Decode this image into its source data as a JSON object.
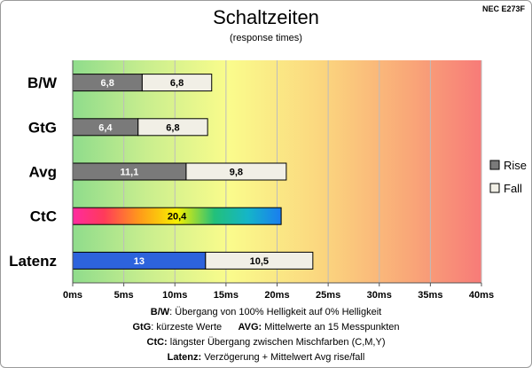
{
  "chart_data": {
    "type": "bar",
    "orientation": "horizontal",
    "stacked": true,
    "title": "Schaltzeiten",
    "subtitle": "(response times)",
    "model": "NEC E273F",
    "categories": [
      "B/W",
      "GtG",
      "Avg",
      "CtC",
      "Latenz"
    ],
    "series": [
      {
        "name": "Rise",
        "values": [
          6.8,
          6.4,
          11.1,
          20.4,
          13
        ],
        "color": "#7a7a7a"
      },
      {
        "name": "Fall",
        "values": [
          6.8,
          6.8,
          9.8,
          0,
          10.5
        ],
        "color": "#f1efe6"
      }
    ],
    "value_labels": {
      "rise": [
        "6,8",
        "6,4",
        "11,1",
        "20,4",
        "13"
      ],
      "fall": [
        "6,8",
        "6,8",
        "9,8",
        "",
        "10,5"
      ]
    },
    "special_fills": {
      "CtC": "rainbow-gradient",
      "Latenz": "blue"
    },
    "xlim": [
      0,
      40
    ],
    "xticks": [
      0,
      5,
      10,
      15,
      20,
      25,
      30,
      35,
      40
    ],
    "xtick_labels": [
      "0ms",
      "5ms",
      "10ms",
      "15ms",
      "20ms",
      "25ms",
      "30ms",
      "35ms",
      "40ms"
    ],
    "background": "gradient green-yellow-red",
    "grid": true,
    "legend_position": "right"
  },
  "notes": {
    "line1_key": "B/W",
    "line1_text": ":  Übergang von 100% Helligkeit auf 0% Helligkeit",
    "line2a_key": "GtG",
    "line2a_text": ": kürzeste  Werte",
    "line2b_key": "AVG:",
    "line2b_text": " Mittelwerte  an 15 Messpunkten",
    "line3_key": "CtC:",
    "line3_text": " längster Übergang  zwischen Mischfarben  (C,M,Y)",
    "line4_key": "Latenz:",
    "line4_text": " Verzögerung  + Mittelwert  Avg rise/fall"
  }
}
